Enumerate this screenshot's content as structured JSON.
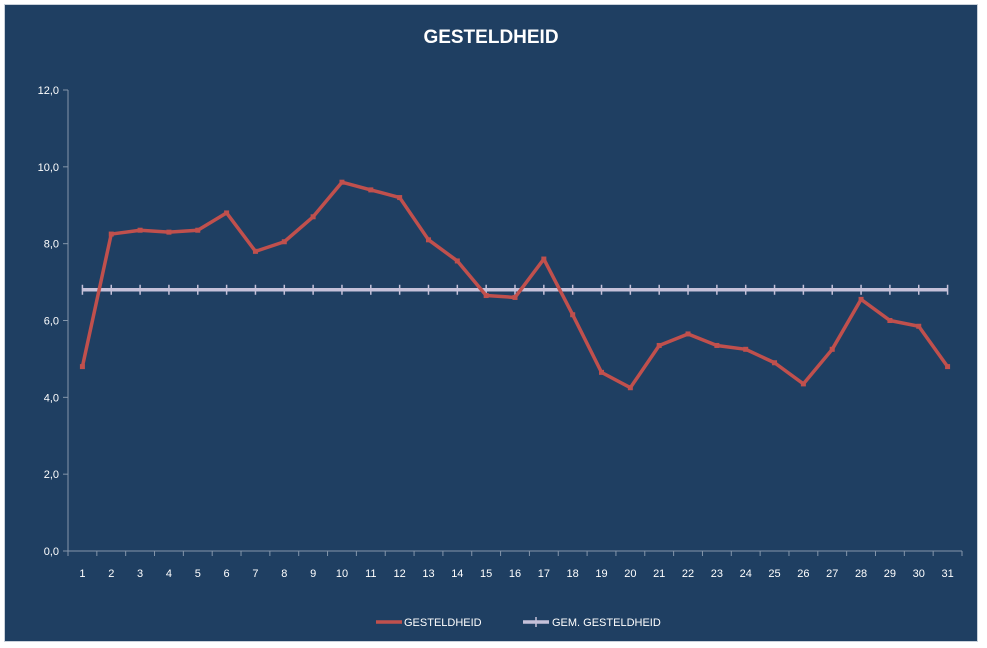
{
  "chart_data": {
    "type": "line",
    "title": "GESTELDHEID",
    "xlabel": "",
    "ylabel": "",
    "categories": [
      "1",
      "2",
      "3",
      "4",
      "5",
      "6",
      "7",
      "8",
      "9",
      "10",
      "11",
      "12",
      "13",
      "14",
      "15",
      "16",
      "17",
      "18",
      "19",
      "20",
      "21",
      "22",
      "23",
      "24",
      "25",
      "26",
      "27",
      "28",
      "29",
      "30",
      "31"
    ],
    "y_ticks": [
      "0,0",
      "2,0",
      "4,0",
      "6,0",
      "8,0",
      "10,0",
      "12,0"
    ],
    "ylim": [
      0,
      12
    ],
    "grid": false,
    "legend_position": "bottom",
    "series": [
      {
        "name": "GESTELDHEID",
        "color": "#c0504d",
        "values": [
          4.8,
          8.25,
          8.35,
          8.3,
          8.35,
          8.8,
          7.8,
          8.05,
          8.7,
          9.6,
          9.4,
          9.2,
          8.1,
          7.55,
          6.65,
          6.6,
          7.6,
          6.15,
          4.65,
          4.25,
          5.35,
          5.65,
          5.35,
          5.25,
          4.9,
          4.35,
          5.25,
          6.55,
          6.0,
          5.85,
          4.8
        ]
      },
      {
        "name": "GEM. GESTELDHEID",
        "color": "#c5c1d9",
        "values": [
          6.8,
          6.8,
          6.8,
          6.8,
          6.8,
          6.8,
          6.8,
          6.8,
          6.8,
          6.8,
          6.8,
          6.8,
          6.8,
          6.8,
          6.8,
          6.8,
          6.8,
          6.8,
          6.8,
          6.8,
          6.8,
          6.8,
          6.8,
          6.8,
          6.8,
          6.8,
          6.8,
          6.8,
          6.8,
          6.8,
          6.8
        ]
      }
    ]
  }
}
